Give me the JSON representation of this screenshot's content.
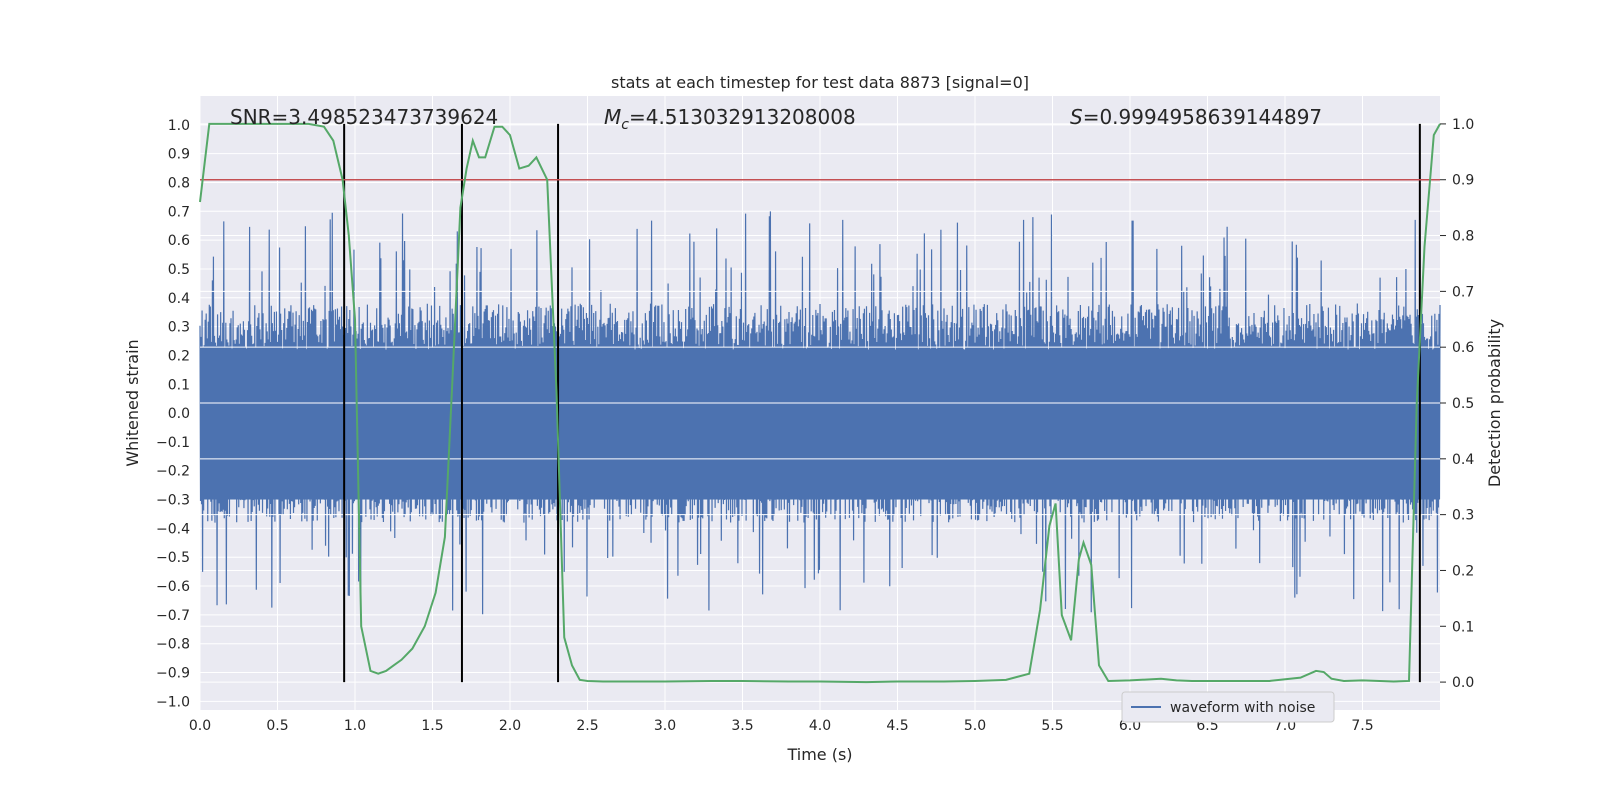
{
  "chart_data": {
    "type": "line",
    "title": "stats at each timestep for test data 8873 [signal=0]",
    "xlabel": "Time (s)",
    "ylabel": "Whitened strain",
    "y2label": "Detection probability",
    "xlim": [
      0,
      8.0
    ],
    "ylim": [
      -1.03,
      1.1
    ],
    "y2lim": [
      -0.05,
      1.05
    ],
    "x_ticks": [
      "0.0",
      "0.5",
      "1.0",
      "1.5",
      "2.0",
      "2.5",
      "3.0",
      "3.5",
      "4.0",
      "4.5",
      "5.0",
      "5.5",
      "6.0",
      "6.5",
      "7.0",
      "7.5"
    ],
    "y_ticks": [
      "1.0",
      "0.9",
      "0.8",
      "0.7",
      "0.6",
      "0.5",
      "0.4",
      "0.3",
      "0.2",
      "0.1",
      "0.0",
      "−0.1",
      "−0.2",
      "−0.3",
      "−0.4",
      "−0.5",
      "−0.6",
      "−0.7",
      "−0.8",
      "−0.9",
      "−1.0"
    ],
    "y2_ticks": [
      "1.0",
      "0.9",
      "0.8",
      "0.7",
      "0.6",
      "0.5",
      "0.4",
      "0.3",
      "0.2",
      "0.1",
      "0.0"
    ],
    "grid": true,
    "legend": {
      "position": "bottom-right",
      "entries": [
        "waveform with noise"
      ]
    },
    "annotations": {
      "snr": "SNR=3.498523473739624",
      "mc_symbol": "M",
      "mc_sub": "c",
      "mc_value": "=4.513032913208008",
      "s_symbol": "S",
      "s_value": "=0.9994958639144897"
    },
    "threshold": {
      "y2": 0.9
    },
    "vertical_lines_x": [
      0.93,
      1.69,
      2.31,
      7.87
    ],
    "probability_series": {
      "x": [
        0.0,
        0.06,
        0.12,
        0.2,
        0.3,
        0.4,
        0.5,
        0.6,
        0.7,
        0.8,
        0.86,
        0.92,
        0.96,
        1.0,
        1.04,
        1.1,
        1.15,
        1.2,
        1.25,
        1.3,
        1.37,
        1.45,
        1.52,
        1.58,
        1.63,
        1.68,
        1.72,
        1.76,
        1.8,
        1.84,
        1.9,
        1.95,
        2.0,
        2.06,
        2.12,
        2.17,
        2.24,
        2.3,
        2.35,
        2.4,
        2.45,
        2.5,
        2.6,
        2.8,
        3.0,
        3.3,
        3.5,
        3.8,
        4.0,
        4.3,
        4.5,
        4.8,
        5.0,
        5.2,
        5.35,
        5.42,
        5.48,
        5.52,
        5.56,
        5.62,
        5.67,
        5.7,
        5.75,
        5.8,
        5.86,
        6.0,
        6.2,
        6.3,
        6.4,
        6.6,
        6.9,
        7.1,
        7.2,
        7.25,
        7.3,
        7.38,
        7.5,
        7.7,
        7.8,
        7.85,
        7.9,
        7.96,
        8.0
      ],
      "y": [
        0.86,
        1.0,
        1.0,
        1.0,
        1.0,
        1.0,
        1.0,
        1.0,
        1.0,
        0.995,
        0.97,
        0.9,
        0.8,
        0.65,
        0.1,
        0.02,
        0.015,
        0.02,
        0.03,
        0.04,
        0.06,
        0.1,
        0.16,
        0.26,
        0.55,
        0.85,
        0.92,
        0.97,
        0.94,
        0.94,
        0.995,
        0.995,
        0.98,
        0.92,
        0.925,
        0.94,
        0.9,
        0.52,
        0.08,
        0.03,
        0.004,
        0.002,
        0.001,
        0.001,
        0.001,
        0.002,
        0.002,
        0.001,
        0.001,
        0.0,
        0.001,
        0.001,
        0.002,
        0.004,
        0.015,
        0.13,
        0.28,
        0.32,
        0.12,
        0.075,
        0.22,
        0.25,
        0.21,
        0.03,
        0.002,
        0.003,
        0.006,
        0.003,
        0.002,
        0.002,
        0.002,
        0.008,
        0.02,
        0.018,
        0.006,
        0.002,
        0.003,
        0.001,
        0.002,
        0.5,
        0.78,
        0.98,
        1.0
      ]
    },
    "series": [
      {
        "name": "waveform with noise",
        "color": "#4c72b0",
        "note_values": "dense noise band roughly within ±0.35 with spikes up to ±0.75"
      },
      {
        "color": "#55a868"
      }
    ],
    "colors": {
      "waveform": "#4c72b0",
      "probability": "#55a868",
      "threshold": "#c44e52",
      "vline": "#000000",
      "plot_bg": "#eaeaf2",
      "grid": "#ffffff"
    }
  }
}
